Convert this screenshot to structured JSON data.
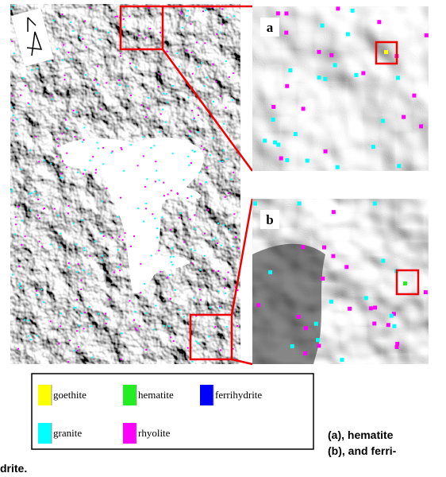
{
  "panels": [
    {
      "label": "a"
    },
    {
      "label": "b"
    }
  ],
  "legend": {
    "items": [
      {
        "name": "goethite",
        "color": "#ffff00"
      },
      {
        "name": "hematite",
        "color": "#22ee22"
      },
      {
        "name": "ferrihydrite",
        "color": "#0000ff"
      },
      {
        "name": "granite",
        "color": "#00ffff"
      },
      {
        "name": "rhyolite",
        "color": "#ff00ff"
      }
    ]
  },
  "caption": {
    "lines": [
      "(a), hematite",
      "(b), and ferri-",
      "drite."
    ]
  }
}
